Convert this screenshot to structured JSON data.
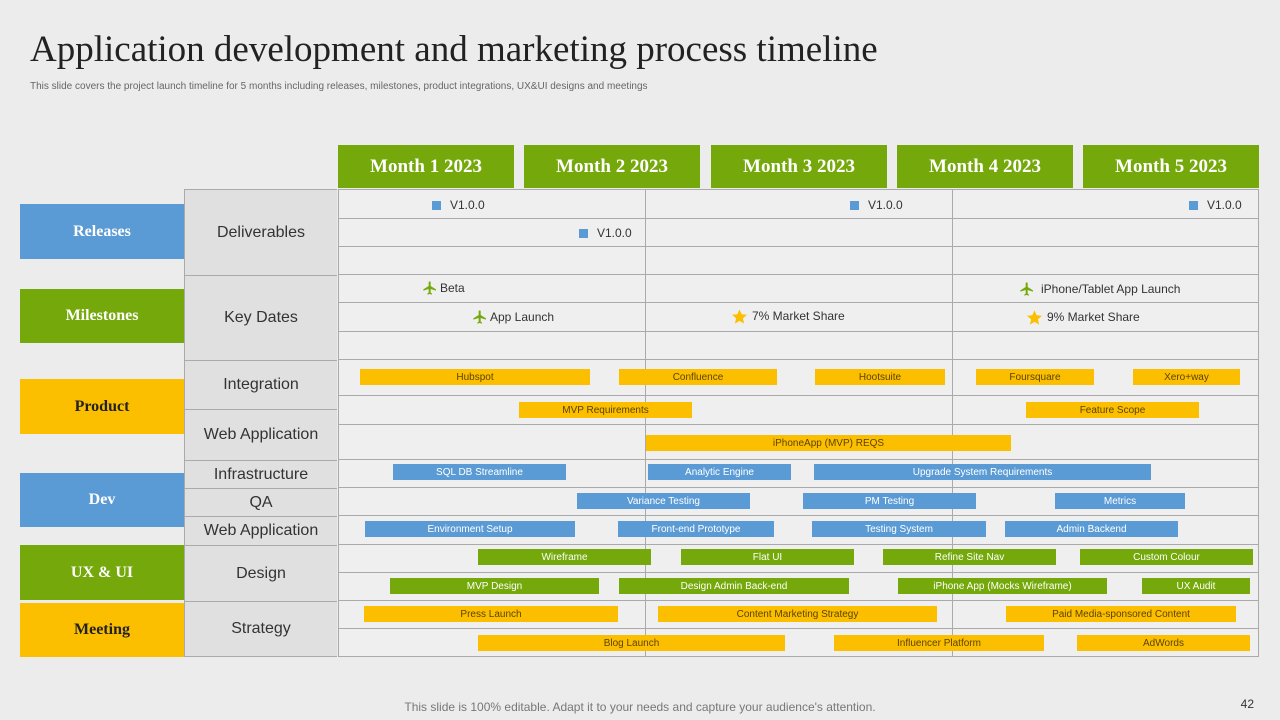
{
  "title": "Application development and marketing process timeline",
  "subtitle": "This slide covers the project launch timeline  for 5 months including releases, milestones, product integrations, UX&UI  designs and meetings",
  "footer": "This slide is 100% editable. Adapt it to your needs and capture your audience's attention.",
  "page_number": "42",
  "months": [
    "Month 1 2023",
    "Month 2 2023",
    "Month 3 2023",
    "Month 4 2023",
    "Month 5 2023"
  ],
  "categories": [
    "Releases",
    "Milestones",
    "Product",
    "Dev",
    "UX & UI",
    "Meeting"
  ],
  "subcategories": [
    "Deliverables",
    "Key Dates",
    "Integration",
    "Web Application",
    "Infrastructure",
    "QA",
    "Web Application",
    "Design",
    "Strategy"
  ],
  "deliverables": [
    "V1.0.0",
    "V1.0.0",
    "V1.0.0",
    "V1.0.0"
  ],
  "key_dates": [
    "Beta",
    "iPhone/Tablet App Launch",
    "App Launch",
    "7% Market Share",
    "9% Market Share"
  ],
  "bars": {
    "product": [
      "Hubspot",
      "Confluence",
      "Hootsuite",
      "Foursquare",
      "Xero+way",
      "MVP Requirements",
      "Feature Scope",
      "iPhoneApp (MVP) REQS"
    ],
    "dev": [
      "SQL DB Streamline",
      "Analytic Engine",
      "Upgrade System Requirements",
      "Variance Testing",
      "PM  Testing",
      "Metrics",
      "Environment Setup",
      "Front-end Prototype",
      "Testing System",
      "Admin Backend"
    ],
    "ux": [
      "Wireframe",
      "Flat UI",
      "Refine Site Nav",
      "Custom Colour",
      "MVP Design",
      "Design Admin Back-end",
      "iPhone App (Mocks Wireframe)",
      "UX Audit"
    ],
    "meeting": [
      "Press Launch",
      "Content Marketing Strategy",
      "Paid Media-sponsored Content",
      "Blog Launch",
      "Influencer Platform",
      "AdWords"
    ]
  },
  "colors": {
    "green": "#74a80b",
    "blue": "#5b9bd5",
    "yellow": "#fcbf00"
  }
}
